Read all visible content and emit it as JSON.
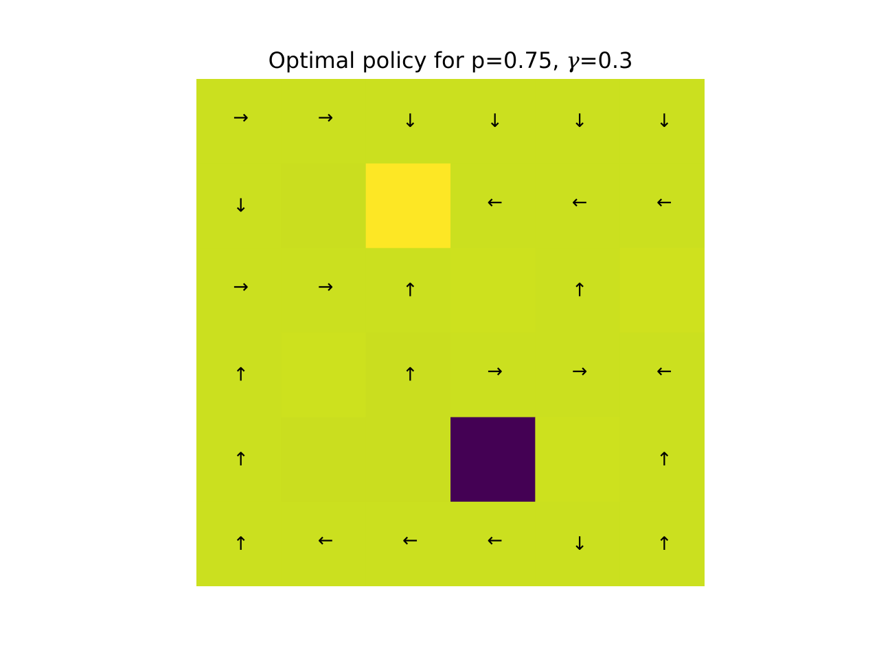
{
  "chart_data": {
    "type": "heatmap",
    "title": {
      "prefix": "Optimal policy for p=0.75, ",
      "gamma_symbol": "γ",
      "suffix": "=0.3"
    },
    "rows": 6,
    "cols": 6,
    "policy": [
      [
        "→",
        "→",
        "↓",
        "↓",
        "↓",
        "↓"
      ],
      [
        "↓",
        "",
        "",
        "←",
        "←",
        "←"
      ],
      [
        "→",
        "→",
        "↑",
        "",
        "↑",
        ""
      ],
      [
        "↑",
        "",
        "↑",
        "→",
        "→",
        "←"
      ],
      [
        "↑",
        "",
        "",
        "",
        "",
        "↑"
      ],
      [
        "↑",
        "←",
        "←",
        "←",
        "↓",
        "↑"
      ]
    ],
    "values": [
      [
        0.93,
        0.93,
        0.93,
        0.93,
        0.93,
        0.93
      ],
      [
        0.93,
        0.94,
        1.0,
        0.93,
        0.93,
        0.93
      ],
      [
        0.93,
        0.93,
        0.93,
        0.94,
        0.93,
        0.95
      ],
      [
        0.93,
        0.94,
        0.93,
        0.93,
        0.93,
        0.93
      ],
      [
        0.93,
        0.94,
        0.94,
        0.0,
        0.94,
        0.93
      ],
      [
        0.93,
        0.93,
        0.93,
        0.93,
        0.93,
        0.93
      ]
    ],
    "colormap": "viridis",
    "cell_colors": [
      [
        "#cbe01f",
        "#cbe01f",
        "#cbe01f",
        "#cbe01f",
        "#cbe01f",
        "#cbe01f"
      ],
      [
        "#cbe01f",
        "#cade1f",
        "#fde725",
        "#cbe01f",
        "#cbe01f",
        "#cbe01f"
      ],
      [
        "#cbe01f",
        "#cbe01f",
        "#cbe01f",
        "#cde11e",
        "#cbe01f",
        "#cfe11e"
      ],
      [
        "#cbe01f",
        "#cde11e",
        "#cade1f",
        "#cbe01f",
        "#cbe01f",
        "#cbe01f"
      ],
      [
        "#cbe01f",
        "#cade1f",
        "#cade1f",
        "#440154",
        "#cde11e",
        "#cbe01f"
      ],
      [
        "#cbe01f",
        "#cbe01f",
        "#cbe01f",
        "#cbe01f",
        "#cbe01f",
        "#cbe01f"
      ]
    ],
    "axes_visible": false,
    "grid": false,
    "legend": "none"
  }
}
